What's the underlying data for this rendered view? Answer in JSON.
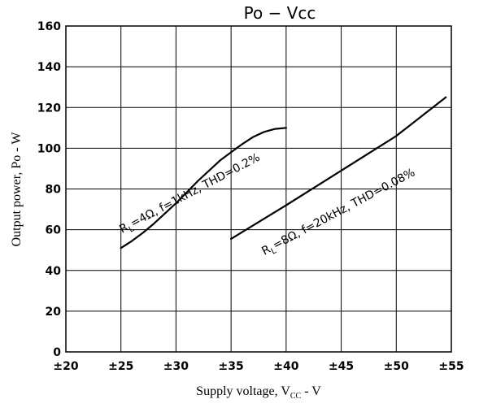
{
  "chart_data": {
    "type": "line",
    "title": "Po − Vcc",
    "xlabel": "Supply voltage, V",
    "xlabel_sub": "CC",
    "xlabel_suffix": " - V",
    "ylabel": "Output power, Po - W",
    "xlim": [
      20,
      55
    ],
    "ylim": [
      0,
      160
    ],
    "x_ticks": [
      20,
      25,
      30,
      35,
      40,
      45,
      50,
      55
    ],
    "x_tick_labels": [
      "±20",
      "±25",
      "±30",
      "±35",
      "±40",
      "±45",
      "±50",
      "±55"
    ],
    "y_ticks": [
      0,
      20,
      40,
      60,
      80,
      100,
      120,
      140,
      160
    ],
    "y_tick_labels": [
      "0",
      "20",
      "40",
      "60",
      "80",
      "100",
      "120",
      "140",
      "160"
    ],
    "grid": true,
    "series": [
      {
        "x": [
          25,
          26,
          27,
          28,
          29,
          30,
          31,
          32,
          33,
          34,
          35,
          36,
          37,
          38,
          39,
          40
        ],
        "values": [
          51,
          54.5,
          58.5,
          63,
          68,
          73,
          78.5,
          84,
          89,
          94,
          98,
          102,
          105.5,
          108,
          109.5,
          110
        ]
      },
      {
        "x": [
          35,
          40,
          45,
          50,
          54.5
        ],
        "values": [
          55.5,
          72,
          89,
          106,
          125
        ]
      }
    ],
    "annotations": [
      {
        "text": "R",
        "sub": "L",
        "rest": "=4Ω, f=1kHz, THD=0.2%"
      },
      {
        "text": "R",
        "sub": "L",
        "rest": "=8Ω, f=20kHz, THD=0.08%"
      }
    ]
  }
}
